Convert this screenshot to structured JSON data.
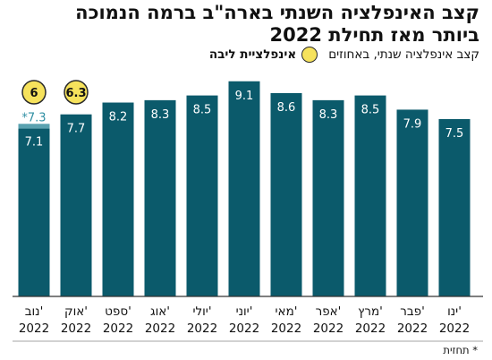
{
  "header": {
    "title_line1": "קצב האינפלציה השנתי בארה\"ב ברמה הנמוכה",
    "title_line2": "ביותר מאז תחילת 2022",
    "units": "קצב אינפלציה שנתי, באחוזים",
    "legend_core": "אינפלציית ליבה"
  },
  "footnote": "* תחזית",
  "colors": {
    "bar": "#0b5a6b",
    "forecast": "#5aa2b0",
    "core_fill": "#f6e25c",
    "core_stroke": "#2a2a2a",
    "axis": "#333333"
  },
  "chart_data": {
    "type": "bar",
    "categories": [
      "ינו' 2022",
      "פבר' 2022",
      "מרץ' 2022",
      "אפר' 2022",
      "מאי' 2022",
      "יוני' 2022",
      "יולי' 2022",
      "אוג' 2022",
      "ספט' 2022",
      "אוק' 2022",
      "נוב' 2022"
    ],
    "month_labels": [
      "ינו'",
      "פבר'",
      "מרץ'",
      "אפר'",
      "מאי'",
      "יוני'",
      "יולי'",
      "אוג'",
      "ספט'",
      "אוק'",
      "נוב'"
    ],
    "year_labels": [
      "2022",
      "2022",
      "2022",
      "2022",
      "2022",
      "2022",
      "2022",
      "2022",
      "2022",
      "2022",
      "2022"
    ],
    "values": [
      7.5,
      7.9,
      8.5,
      8.3,
      8.6,
      9.1,
      8.5,
      8.3,
      8.2,
      7.7,
      7.1
    ],
    "value_labels": [
      "7.5",
      "7.9",
      "8.5",
      "8.3",
      "8.6",
      "9.1",
      "8.5",
      "8.3",
      "8.2",
      "7.7",
      "7.1"
    ],
    "forecast": {
      "category": "נוב' 2022",
      "value": 7.3,
      "label": "*7.3"
    },
    "core_inflation": [
      {
        "category": "אוק' 2022",
        "value": 6.3,
        "label": "6.3"
      },
      {
        "category": "נוב' 2022",
        "value": 6,
        "label": "6"
      }
    ],
    "ylim": [
      0,
      10
    ],
    "direction": "rtl",
    "grid": false
  }
}
